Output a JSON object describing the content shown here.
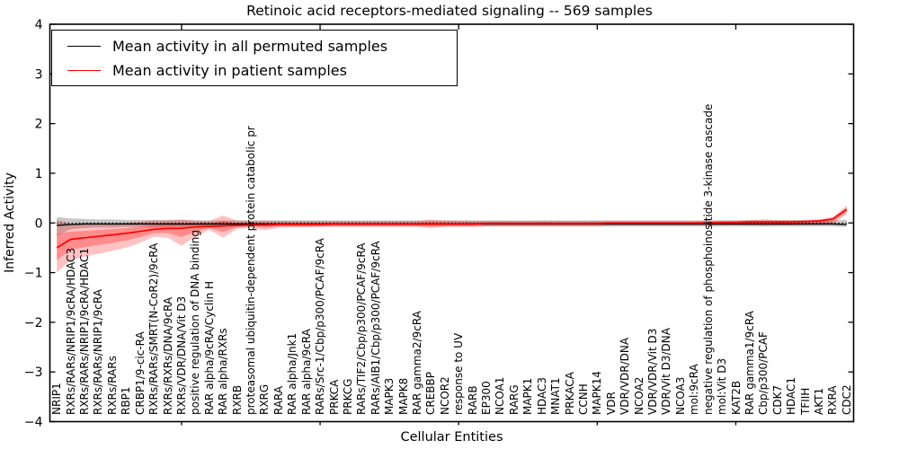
{
  "figure": {
    "title": "Retinoic acid receptors-mediated signaling -- 569 samples",
    "xlabel": "Cellular Entities",
    "ylabel": "Inferred Activity"
  },
  "legend": {
    "items": [
      {
        "label": "Mean activity in all permuted samples",
        "color": "#000000"
      },
      {
        "label": "Mean activity in patient samples",
        "color": "#ff0000"
      }
    ]
  },
  "chart_data": {
    "type": "line",
    "title": "Retinoic acid receptors-mediated signaling -- 569 samples",
    "xlabel": "Cellular Entities",
    "ylabel": "Inferred Activity",
    "ylim": [
      -4,
      4
    ],
    "yticks": [
      4,
      3,
      2,
      1,
      0,
      -1,
      -2,
      -3,
      -4
    ],
    "zero_reference_line": true,
    "grid": false,
    "legend_position": "upper left",
    "categories": [
      "NRIP1",
      "RXRs/RARs/NRIP1/9cRA/HDAC3",
      "RXRs/RARs/NRIP1/9cRA/HDAC1",
      "RXRs/RARs/NRIP1/9cRA",
      "RXRs/RARs",
      "RBP1",
      "CRBP1/9-cic-RA",
      "RXRs/RARs/SMRT(N-CoR2)/9cRA",
      "RXRs/RXRs/DNA/9cRA",
      "RXRs/VDR/DNA/Vit D3",
      "positive regulation of DNA binding",
      "RAR alpha/9cRA/Cyclin H",
      "RAR alpha/RXRs",
      "RXRB",
      "proteasomal ubiquitin-dependent protein catabolic pr",
      "RXRG",
      "RARA",
      "RAR alpha/Jnk1",
      "RAR alpha/9cRA",
      "RARs/Src-1/Cbp/p300/PCAF/9cRA",
      "PRKCA",
      "PRKCG",
      "RARs/TIF2/Cbp/p300/PCAF/9cRA",
      "RARs/AIB1/Cbp/p300/PCAF/9cRA",
      "MAPK3",
      "MAPK8",
      "RAR gamma2/9cRA",
      "CREBBP",
      "NCOR2",
      "response to UV",
      "RARB",
      "EP300",
      "NCOA1",
      "RARG",
      "MAPK1",
      "HDAC3",
      "MNAT1",
      "PRKACA",
      "CCNH",
      "MAPK14",
      "VDR",
      "VDR/VDR/DNA",
      "NCOA2",
      "VDR/VDR/Vit D3",
      "VDR/Vit D3/DNA",
      "NCOA3",
      "mol:9cRA",
      "negative regulation of phosphoinositide 3-kinase cascade",
      "mol:Vit D3",
      "KAT2B",
      "RAR gamma1/9cRA",
      "Cbp/p300/PCAF",
      "CDK7",
      "HDAC1",
      "TFIIH",
      "AKT1",
      "RXRA",
      "CDC2"
    ],
    "series": [
      {
        "name": "Mean activity in all permuted samples",
        "color": "#000000",
        "band_color": "#000000",
        "values": [
          -0.05,
          -0.03,
          -0.02,
          -0.02,
          -0.02,
          -0.02,
          -0.02,
          -0.02,
          -0.02,
          -0.02,
          -0.02,
          -0.02,
          -0.02,
          -0.02,
          -0.02,
          -0.02,
          -0.02,
          -0.02,
          -0.02,
          -0.02,
          -0.02,
          -0.02,
          -0.02,
          -0.02,
          -0.02,
          -0.02,
          -0.02,
          -0.02,
          -0.02,
          -0.02,
          -0.02,
          -0.02,
          -0.02,
          -0.02,
          -0.02,
          -0.02,
          -0.02,
          -0.02,
          -0.02,
          -0.02,
          -0.02,
          -0.02,
          -0.02,
          -0.02,
          -0.02,
          -0.02,
          -0.02,
          -0.02,
          -0.02,
          -0.02,
          -0.02,
          -0.02,
          -0.02,
          -0.02,
          -0.02,
          -0.02,
          -0.02,
          -0.03
        ],
        "band_lower": [
          -0.25,
          -0.13,
          -0.1,
          -0.09,
          -0.09,
          -0.08,
          -0.08,
          -0.08,
          -0.08,
          -0.08,
          -0.07,
          -0.07,
          -0.07,
          -0.07,
          -0.07,
          -0.07,
          -0.07,
          -0.07,
          -0.07,
          -0.07,
          -0.07,
          -0.07,
          -0.07,
          -0.07,
          -0.07,
          -0.07,
          -0.07,
          -0.07,
          -0.07,
          -0.07,
          -0.07,
          -0.07,
          -0.07,
          -0.07,
          -0.07,
          -0.07,
          -0.07,
          -0.07,
          -0.07,
          -0.07,
          -0.07,
          -0.07,
          -0.07,
          -0.07,
          -0.07,
          -0.07,
          -0.07,
          -0.07,
          -0.07,
          -0.07,
          -0.07,
          -0.07,
          -0.07,
          -0.07,
          -0.07,
          -0.07,
          -0.07,
          -0.08
        ],
        "band_upper": [
          0.12,
          0.09,
          0.08,
          0.07,
          0.07,
          0.06,
          0.06,
          0.06,
          0.06,
          0.06,
          0.05,
          0.05,
          0.05,
          0.05,
          0.05,
          0.05,
          0.05,
          0.05,
          0.05,
          0.05,
          0.05,
          0.05,
          0.05,
          0.05,
          0.05,
          0.05,
          0.05,
          0.05,
          0.05,
          0.05,
          0.05,
          0.05,
          0.05,
          0.05,
          0.05,
          0.05,
          0.05,
          0.05,
          0.05,
          0.05,
          0.05,
          0.05,
          0.05,
          0.05,
          0.05,
          0.05,
          0.05,
          0.05,
          0.05,
          0.05,
          0.05,
          0.05,
          0.05,
          0.05,
          0.05,
          0.05,
          0.05,
          0.06
        ]
      },
      {
        "name": "Mean activity in patient samples",
        "color": "#ff0000",
        "band_color": "#ff0000",
        "values": [
          -0.5,
          -0.33,
          -0.3,
          -0.27,
          -0.24,
          -0.21,
          -0.17,
          -0.13,
          -0.11,
          -0.11,
          -0.08,
          -0.07,
          -0.06,
          -0.05,
          -0.04,
          -0.04,
          -0.03,
          -0.03,
          -0.03,
          -0.03,
          -0.02,
          -0.02,
          -0.02,
          -0.02,
          -0.02,
          -0.02,
          -0.02,
          -0.02,
          -0.02,
          -0.02,
          -0.02,
          -0.01,
          -0.01,
          -0.01,
          -0.01,
          -0.01,
          -0.01,
          -0.01,
          -0.01,
          -0.01,
          0,
          0,
          0,
          0,
          0,
          0,
          0,
          0,
          0.01,
          0.01,
          0.02,
          0.02,
          0.02,
          0.02,
          0.03,
          0.04,
          0.08,
          0.27
        ],
        "band_lower": [
          -1.0,
          -0.75,
          -0.68,
          -0.62,
          -0.56,
          -0.5,
          -0.4,
          -0.28,
          -0.3,
          -0.46,
          -0.28,
          -0.14,
          -0.3,
          -0.12,
          -0.1,
          -0.15,
          -0.1,
          -0.09,
          -0.09,
          -0.08,
          -0.08,
          -0.08,
          -0.08,
          -0.08,
          -0.08,
          -0.08,
          -0.08,
          -0.11,
          -0.08,
          -0.08,
          -0.08,
          -0.07,
          -0.07,
          -0.07,
          -0.07,
          -0.07,
          -0.07,
          -0.07,
          -0.07,
          -0.07,
          -0.06,
          -0.06,
          -0.06,
          -0.06,
          -0.06,
          -0.06,
          -0.06,
          -0.06,
          -0.05,
          -0.05,
          -0.05,
          -0.06,
          -0.05,
          -0.05,
          -0.04,
          -0.04,
          -0.02,
          0.17
        ],
        "band_upper": [
          0.06,
          -0.02,
          -0.02,
          -0.02,
          -0.01,
          0,
          0.02,
          0.05,
          0.05,
          0.07,
          0.05,
          0.04,
          0.15,
          0.05,
          0.04,
          0.05,
          0.04,
          0.04,
          0.04,
          0.04,
          0.04,
          0.04,
          0.04,
          0.04,
          0.04,
          0.04,
          0.04,
          0.07,
          0.05,
          0.05,
          0.04,
          0.04,
          0.04,
          0.04,
          0.04,
          0.04,
          0.04,
          0.04,
          0.04,
          0.04,
          0.04,
          0.04,
          0.04,
          0.04,
          0.04,
          0.04,
          0.04,
          0.05,
          0.05,
          0.05,
          0.06,
          0.07,
          0.06,
          0.06,
          0.06,
          0.07,
          0.12,
          0.35
        ]
      }
    ]
  }
}
